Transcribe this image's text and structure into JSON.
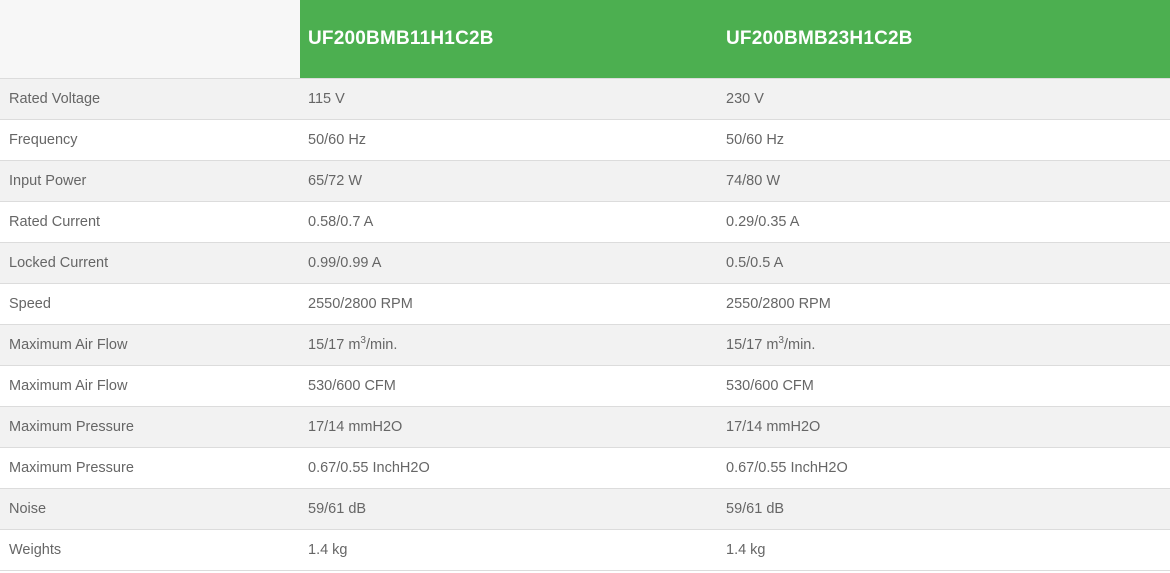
{
  "table": {
    "header": {
      "blank": "",
      "models": [
        "UF200BMB11H1C2B",
        "UF200BMB23H1C2B"
      ]
    },
    "rows": [
      {
        "label": "Rated Voltage",
        "values": [
          {
            "text": "115 V"
          },
          {
            "text": "230 V"
          }
        ]
      },
      {
        "label": "Frequency",
        "values": [
          {
            "text": "50/60 Hz"
          },
          {
            "text": "50/60 Hz"
          }
        ]
      },
      {
        "label": "Input Power",
        "values": [
          {
            "text": "65/72 W"
          },
          {
            "text": "74/80 W"
          }
        ]
      },
      {
        "label": "Rated Current",
        "values": [
          {
            "text": "0.58/0.7 A"
          },
          {
            "text": "0.29/0.35 A"
          }
        ]
      },
      {
        "label": "Locked Current",
        "values": [
          {
            "text": "0.99/0.99 A"
          },
          {
            "text": "0.5/0.5 A"
          }
        ]
      },
      {
        "label": "Speed",
        "values": [
          {
            "text": "2550/2800 RPM"
          },
          {
            "text": "2550/2800 RPM"
          }
        ]
      },
      {
        "label": "Maximum Air Flow",
        "values": [
          {
            "text": "15/17 m",
            "sup": "3",
            "post": "/min."
          },
          {
            "text": "15/17 m",
            "sup": "3",
            "post": "/min."
          }
        ]
      },
      {
        "label": "Maximum Air Flow",
        "values": [
          {
            "text": "530/600 CFM"
          },
          {
            "text": "530/600 CFM"
          }
        ]
      },
      {
        "label": "Maximum Pressure",
        "values": [
          {
            "text": "17/14 mmH2O"
          },
          {
            "text": "17/14 mmH2O"
          }
        ]
      },
      {
        "label": "Maximum Pressure",
        "values": [
          {
            "text": "0.67/0.55 InchH2O"
          },
          {
            "text": "0.67/0.55 InchH2O"
          }
        ]
      },
      {
        "label": "Noise",
        "values": [
          {
            "text": "59/61 dB"
          },
          {
            "text": "59/61 dB"
          }
        ]
      },
      {
        "label": "Weights",
        "values": [
          {
            "text": "1.4 kg"
          },
          {
            "text": "1.4 kg"
          }
        ]
      }
    ]
  },
  "colors": {
    "header_green": "#4caf50",
    "text": "#666666",
    "stripe": "#f2f2f2"
  }
}
